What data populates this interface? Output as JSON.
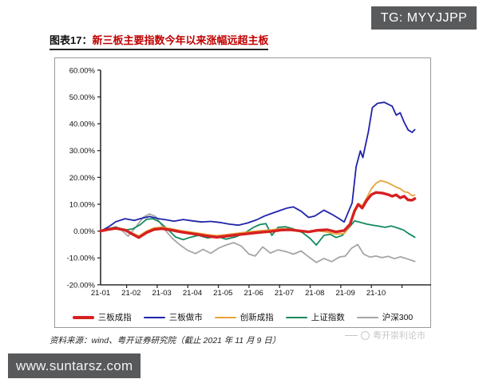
{
  "header": {
    "tg_badge": "TG: MYYJJPP"
  },
  "figure": {
    "title_prefix": "图表17：",
    "title": "新三板主要指数今年以来涨幅远超主板",
    "source": "资料来源：wind、粤开证券研究院（截止 2021 年 11 月 9 日）",
    "watermark": "粤开崇利论市"
  },
  "footer": {
    "site": "www.suntarsz.com"
  },
  "colors": {
    "badge_bg": "#595a5c",
    "title_red": "#c00000",
    "axis": "#2b2b2b",
    "frame_border": "#9a9a9a",
    "watermark_gray": "#c6c6c6"
  },
  "chart_data": {
    "type": "line",
    "title": "新三板主要指数今年以来涨幅远超主板",
    "xlabel": "",
    "ylabel": "",
    "x_unit": "months of 2021 (YY-MM), data through 2021-11-09",
    "x_tick_labels": [
      "21-01",
      "21-02",
      "21-03",
      "21-04",
      "21-05",
      "21-06",
      "21-07",
      "21-08",
      "21-09",
      "21-10"
    ],
    "x_range_months": [
      0,
      10.3
    ],
    "ylim": [
      -20,
      60
    ],
    "y_tick_step": 10,
    "y_tick_labels": [
      "60.00%",
      "50.00%",
      "40.00%",
      "30.00%",
      "20.00%",
      "10.00%",
      "0.00%",
      "-10.00%",
      "-20.00%"
    ],
    "grid": false,
    "legend_position": "bottom",
    "draw_order": [
      4,
      3,
      1,
      2,
      0
    ],
    "series": [
      {
        "name": "三板成指",
        "color": "#d62020",
        "width": 3.4,
        "points": [
          [
            0,
            0
          ],
          [
            0.25,
            0.6
          ],
          [
            0.5,
            1.0
          ],
          [
            0.8,
            0.4
          ],
          [
            1.05,
            -1.2
          ],
          [
            1.25,
            -2.4
          ],
          [
            1.5,
            -0.6
          ],
          [
            1.75,
            0.6
          ],
          [
            2.0,
            0.9
          ],
          [
            2.3,
            0.4
          ],
          [
            2.6,
            -0.3
          ],
          [
            2.9,
            -0.8
          ],
          [
            3.2,
            -1.3
          ],
          [
            3.5,
            -1.9
          ],
          [
            3.8,
            -2.3
          ],
          [
            4.1,
            -1.9
          ],
          [
            4.4,
            -1.5
          ],
          [
            4.7,
            -1.1
          ],
          [
            5.0,
            -0.7
          ],
          [
            5.3,
            -0.4
          ],
          [
            5.6,
            -0.1
          ],
          [
            5.9,
            0.4
          ],
          [
            6.2,
            0.5
          ],
          [
            6.5,
            0.1
          ],
          [
            6.8,
            -0.3
          ],
          [
            7.1,
            0.3
          ],
          [
            7.4,
            0.5
          ],
          [
            7.7,
            -0.3
          ],
          [
            7.96,
            0.2
          ],
          [
            8.15,
            2.5
          ],
          [
            8.3,
            7.5
          ],
          [
            8.42,
            10.0
          ],
          [
            8.55,
            8.6
          ],
          [
            8.7,
            11.5
          ],
          [
            8.85,
            13.6
          ],
          [
            9.0,
            14.4
          ],
          [
            9.2,
            14.2
          ],
          [
            9.4,
            13.6
          ],
          [
            9.53,
            13.0
          ],
          [
            9.66,
            13.5
          ],
          [
            9.79,
            12.4
          ],
          [
            9.92,
            13.0
          ],
          [
            10.05,
            11.6
          ],
          [
            10.18,
            11.5
          ],
          [
            10.27,
            12.1
          ]
        ]
      },
      {
        "name": "三板做市",
        "color": "#2023a8",
        "width": 1.8,
        "points": [
          [
            0,
            0
          ],
          [
            0.25,
            1.5
          ],
          [
            0.5,
            3.5
          ],
          [
            0.8,
            4.6
          ],
          [
            1.1,
            4.0
          ],
          [
            1.35,
            4.8
          ],
          [
            1.6,
            5.4
          ],
          [
            1.9,
            4.6
          ],
          [
            2.15,
            4.2
          ],
          [
            2.4,
            3.7
          ],
          [
            2.7,
            4.3
          ],
          [
            3.0,
            3.8
          ],
          [
            3.3,
            3.4
          ],
          [
            3.6,
            3.6
          ],
          [
            3.9,
            3.2
          ],
          [
            4.2,
            2.6
          ],
          [
            4.5,
            2.2
          ],
          [
            4.8,
            3.0
          ],
          [
            5.1,
            4.2
          ],
          [
            5.35,
            5.6
          ],
          [
            5.6,
            6.6
          ],
          [
            5.85,
            7.6
          ],
          [
            6.1,
            8.6
          ],
          [
            6.3,
            9.0
          ],
          [
            6.55,
            7.4
          ],
          [
            6.8,
            5.1
          ],
          [
            7.0,
            5.6
          ],
          [
            7.3,
            7.8
          ],
          [
            7.55,
            6.3
          ],
          [
            7.8,
            4.6
          ],
          [
            7.96,
            3.4
          ],
          [
            8.22,
            10.5
          ],
          [
            8.35,
            24.0
          ],
          [
            8.49,
            29.9
          ],
          [
            8.57,
            27.4
          ],
          [
            8.75,
            37.0
          ],
          [
            8.88,
            46.0
          ],
          [
            9.05,
            47.6
          ],
          [
            9.27,
            48.0
          ],
          [
            9.53,
            46.5
          ],
          [
            9.66,
            43.2
          ],
          [
            9.79,
            44.1
          ],
          [
            9.92,
            40.6
          ],
          [
            10.05,
            37.7
          ],
          [
            10.18,
            36.8
          ],
          [
            10.27,
            37.8
          ]
        ]
      },
      {
        "name": "创新成指",
        "color": "#e8a33c",
        "width": 1.8,
        "points": [
          [
            0,
            0
          ],
          [
            0.25,
            0.8
          ],
          [
            0.5,
            1.2
          ],
          [
            0.8,
            0.6
          ],
          [
            1.05,
            -0.8
          ],
          [
            1.25,
            -1.8
          ],
          [
            1.5,
            0.0
          ],
          [
            1.75,
            1.2
          ],
          [
            2.0,
            1.5
          ],
          [
            2.3,
            0.9
          ],
          [
            2.6,
            0.2
          ],
          [
            2.9,
            -0.3
          ],
          [
            3.2,
            -0.8
          ],
          [
            3.5,
            -1.3
          ],
          [
            3.8,
            -1.7
          ],
          [
            4.1,
            -1.3
          ],
          [
            4.4,
            -0.9
          ],
          [
            4.7,
            -0.5
          ],
          [
            5.0,
            -0.1
          ],
          [
            5.3,
            0.2
          ],
          [
            5.6,
            0.5
          ],
          [
            5.9,
            0.9
          ],
          [
            6.2,
            0.8
          ],
          [
            6.5,
            0.3
          ],
          [
            6.8,
            -0.2
          ],
          [
            7.1,
            0.1
          ],
          [
            7.4,
            -0.4
          ],
          [
            7.7,
            -1.1
          ],
          [
            7.96,
            -0.9
          ],
          [
            8.15,
            2.0
          ],
          [
            8.3,
            7.0
          ],
          [
            8.42,
            10.2
          ],
          [
            8.55,
            9.4
          ],
          [
            8.7,
            12.5
          ],
          [
            8.85,
            15.8
          ],
          [
            9.0,
            17.8
          ],
          [
            9.15,
            18.8
          ],
          [
            9.35,
            18.2
          ],
          [
            9.53,
            17.2
          ],
          [
            9.66,
            16.4
          ],
          [
            9.79,
            15.8
          ],
          [
            9.92,
            14.7
          ],
          [
            10.05,
            14.4
          ],
          [
            10.18,
            13.2
          ],
          [
            10.27,
            13.4
          ]
        ]
      },
      {
        "name": "上证指数",
        "color": "#148a5d",
        "width": 1.8,
        "points": [
          [
            0,
            0
          ],
          [
            0.25,
            0.8
          ],
          [
            0.5,
            1.5
          ],
          [
            0.8,
            0.4
          ],
          [
            1.05,
            0.8
          ],
          [
            1.3,
            2.4
          ],
          [
            1.5,
            4.4
          ],
          [
            1.7,
            4.6
          ],
          [
            1.9,
            3.6
          ],
          [
            2.2,
            0.6
          ],
          [
            2.45,
            -2.2
          ],
          [
            2.7,
            -3.2
          ],
          [
            2.9,
            -2.4
          ],
          [
            3.2,
            -1.6
          ],
          [
            3.5,
            -2.6
          ],
          [
            3.8,
            -2.0
          ],
          [
            4.1,
            -3.0
          ],
          [
            4.4,
            -2.2
          ],
          [
            4.7,
            -0.8
          ],
          [
            5.0,
            1.4
          ],
          [
            5.2,
            2.4
          ],
          [
            5.4,
            2.8
          ],
          [
            5.6,
            -1.6
          ],
          [
            5.8,
            1.4
          ],
          [
            6.05,
            1.6
          ],
          [
            6.3,
            0.8
          ],
          [
            6.6,
            -0.6
          ],
          [
            6.85,
            -2.8
          ],
          [
            7.05,
            -5.2
          ],
          [
            7.3,
            -1.6
          ],
          [
            7.5,
            -1.2
          ],
          [
            7.7,
            -2.4
          ],
          [
            7.9,
            -1.6
          ],
          [
            8.1,
            1.0
          ],
          [
            8.3,
            3.8
          ],
          [
            8.5,
            3.2
          ],
          [
            8.7,
            2.6
          ],
          [
            8.9,
            2.2
          ],
          [
            9.1,
            1.8
          ],
          [
            9.3,
            1.4
          ],
          [
            9.5,
            1.9
          ],
          [
            9.7,
            1.2
          ],
          [
            9.9,
            0.4
          ],
          [
            10.05,
            -0.8
          ],
          [
            10.27,
            -2.3
          ]
        ]
      },
      {
        "name": "沪深300",
        "color": "#a6a6a6",
        "width": 1.8,
        "points": [
          [
            0,
            0
          ],
          [
            0.25,
            0.9
          ],
          [
            0.5,
            1.6
          ],
          [
            0.7,
            0.2
          ],
          [
            0.9,
            -1.9
          ],
          [
            1.15,
            1.5
          ],
          [
            1.4,
            5.2
          ],
          [
            1.6,
            6.4
          ],
          [
            1.8,
            5.4
          ],
          [
            2.1,
            0.5
          ],
          [
            2.35,
            -2.8
          ],
          [
            2.6,
            -5.2
          ],
          [
            2.85,
            -7.2
          ],
          [
            3.1,
            -8.4
          ],
          [
            3.35,
            -6.8
          ],
          [
            3.6,
            -8.3
          ],
          [
            3.85,
            -6.4
          ],
          [
            4.1,
            -5.2
          ],
          [
            4.35,
            -4.3
          ],
          [
            4.6,
            -5.6
          ],
          [
            4.85,
            -8.6
          ],
          [
            5.05,
            -9.3
          ],
          [
            5.3,
            -5.9
          ],
          [
            5.55,
            -8.2
          ],
          [
            5.8,
            -7.0
          ],
          [
            6.05,
            -7.6
          ],
          [
            6.3,
            -8.6
          ],
          [
            6.55,
            -7.4
          ],
          [
            6.8,
            -9.6
          ],
          [
            7.05,
            -11.7
          ],
          [
            7.3,
            -10.2
          ],
          [
            7.55,
            -11.4
          ],
          [
            7.8,
            -9.7
          ],
          [
            8.0,
            -9.3
          ],
          [
            8.2,
            -6.4
          ],
          [
            8.4,
            -5.0
          ],
          [
            8.6,
            -8.6
          ],
          [
            8.8,
            -9.7
          ],
          [
            9.0,
            -9.3
          ],
          [
            9.2,
            -9.9
          ],
          [
            9.4,
            -9.4
          ],
          [
            9.6,
            -10.3
          ],
          [
            9.8,
            -9.6
          ],
          [
            10.0,
            -10.3
          ],
          [
            10.27,
            -11.3
          ]
        ]
      }
    ]
  }
}
